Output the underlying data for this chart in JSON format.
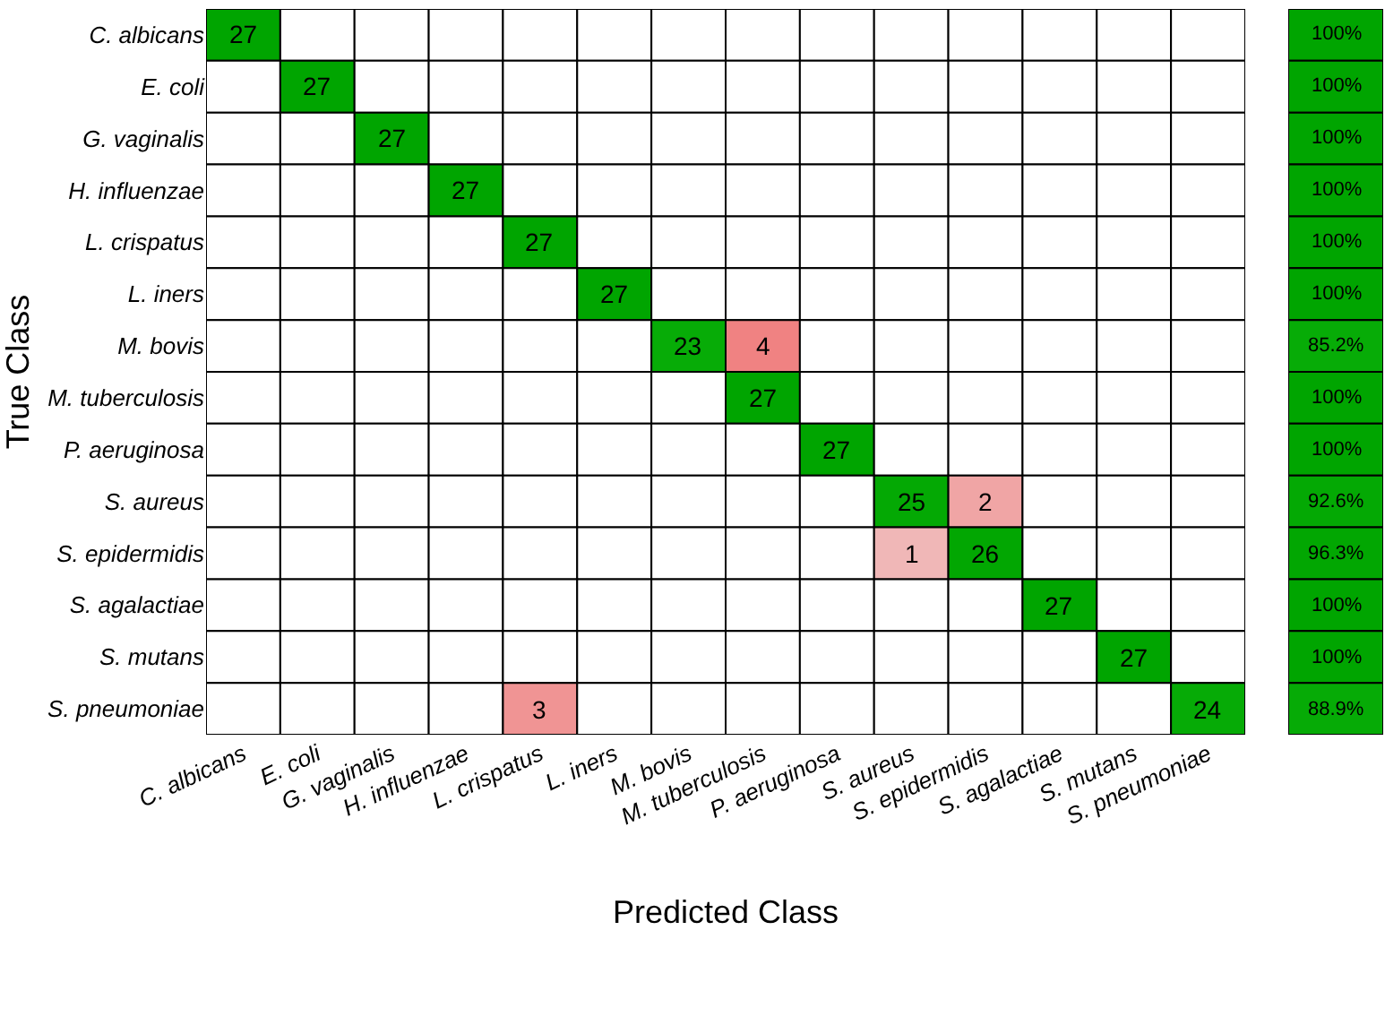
{
  "chart_data": [
    {
      "type": "heatmap",
      "xlabel": "Predicted Class",
      "ylabel": "True Class",
      "data_labels": true,
      "categories": [
        "C. albicans",
        "E. coli",
        "G. vaginalis",
        "H. influenzae",
        "L. crispatus",
        "L. iners",
        "M. bovis",
        "M. tuberculosis",
        "P. aeruginosa",
        "S. aureus",
        "S. epidermidis",
        "S. agalactiae",
        "S. mutans",
        "S. pneumoniae"
      ],
      "y_categories": [
        "C. albicans",
        "E. coli",
        "G. vaginalis",
        "H. influenzae",
        "L. crispatus",
        "L. iners",
        "M. bovis",
        "M. tuberculosis",
        "P. aeruginosa",
        "S. aureus",
        "S. epidermidis",
        "S. agalactiae",
        "S. mutans",
        "S. pneumoniae"
      ],
      "cells": [
        [
          27,
          null,
          null,
          null,
          null,
          null,
          null,
          null,
          null,
          null,
          null,
          null,
          null,
          null
        ],
        [
          null,
          27,
          null,
          null,
          null,
          null,
          null,
          null,
          null,
          null,
          null,
          null,
          null,
          null
        ],
        [
          null,
          null,
          27,
          null,
          null,
          null,
          null,
          null,
          null,
          null,
          null,
          null,
          null,
          null
        ],
        [
          null,
          null,
          null,
          27,
          null,
          null,
          null,
          null,
          null,
          null,
          null,
          null,
          null,
          null
        ],
        [
          null,
          null,
          null,
          null,
          27,
          null,
          null,
          null,
          null,
          null,
          null,
          null,
          null,
          null
        ],
        [
          null,
          null,
          null,
          null,
          null,
          27,
          null,
          null,
          null,
          null,
          null,
          null,
          null,
          null
        ],
        [
          null,
          null,
          null,
          null,
          null,
          null,
          23,
          4,
          null,
          null,
          null,
          null,
          null,
          null
        ],
        [
          null,
          null,
          null,
          null,
          null,
          null,
          null,
          27,
          null,
          null,
          null,
          null,
          null,
          null
        ],
        [
          null,
          null,
          null,
          null,
          null,
          null,
          null,
          null,
          27,
          null,
          null,
          null,
          null,
          null
        ],
        [
          null,
          null,
          null,
          null,
          null,
          null,
          null,
          null,
          null,
          25,
          2,
          null,
          null,
          null
        ],
        [
          null,
          null,
          null,
          null,
          null,
          null,
          null,
          null,
          null,
          1,
          26,
          null,
          null,
          null
        ],
        [
          null,
          null,
          null,
          null,
          null,
          null,
          null,
          null,
          null,
          null,
          null,
          27,
          null,
          null
        ],
        [
          null,
          null,
          null,
          null,
          null,
          null,
          null,
          null,
          null,
          null,
          null,
          null,
          27,
          null
        ],
        [
          null,
          null,
          null,
          null,
          3,
          null,
          null,
          null,
          null,
          null,
          null,
          null,
          null,
          24
        ]
      ]
    },
    {
      "type": "heatmap",
      "categories": [
        null
      ],
      "y_categories": [
        null,
        null,
        null,
        null,
        null,
        null,
        null,
        null,
        null,
        null,
        null,
        null,
        null,
        null
      ],
      "cells": [
        [
          100
        ],
        [
          100
        ],
        [
          100
        ],
        [
          100
        ],
        [
          100
        ],
        [
          100
        ],
        [
          85.2
        ],
        [
          100
        ],
        [
          100
        ],
        [
          92.6
        ],
        [
          96.3
        ],
        [
          100
        ],
        [
          100
        ],
        [
          88.9
        ]
      ],
      "cell_labels": [
        [
          "100%"
        ],
        [
          "100%"
        ],
        [
          "100%"
        ],
        [
          "100%"
        ],
        [
          "100%"
        ],
        [
          "100%"
        ],
        [
          "85.2%"
        ],
        [
          "100%"
        ],
        [
          "100%"
        ],
        [
          "92.6%"
        ],
        [
          "96.3%"
        ],
        [
          "100%"
        ],
        [
          "100%"
        ],
        [
          "88.9%"
        ]
      ]
    }
  ]
}
